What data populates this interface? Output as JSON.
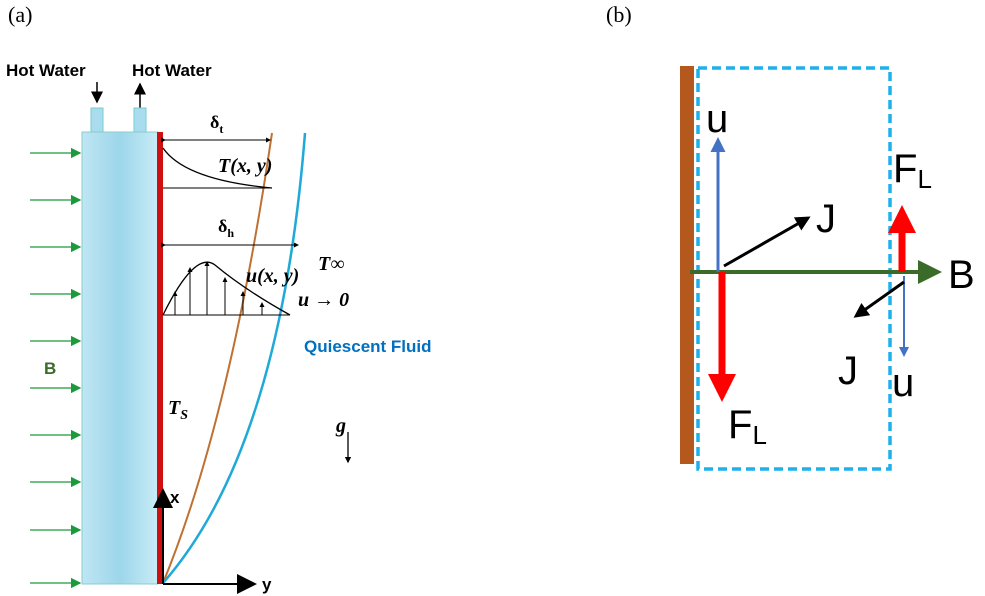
{
  "panel_a": {
    "label": "(a)",
    "inlet": "Hot Water",
    "outlet": "Hot Water",
    "thermal_layer": {
      "symbol": "δ",
      "subscript": "t"
    },
    "temperature_profile": "T(x, y)",
    "velocity_layer": {
      "symbol": "δ",
      "subscript": "h"
    },
    "ambient_temperature": "T∞",
    "velocity_profile": "u(x, y)",
    "far_velocity": "u → 0",
    "fluid": "Quiescent Fluid",
    "field": "B",
    "surface_temperature": {
      "symbol": "T",
      "subscript": "S"
    },
    "gravity": "g",
    "x_axis": "x",
    "y_axis": "y"
  },
  "panel_b": {
    "label": "(b)",
    "left_velocity": "u",
    "left_current": "J",
    "left_force": {
      "symbol": "F",
      "subscript": "L"
    },
    "field": "B",
    "right_force": {
      "symbol": "F",
      "subscript": "L"
    },
    "right_current": "J",
    "right_velocity": "u"
  }
}
